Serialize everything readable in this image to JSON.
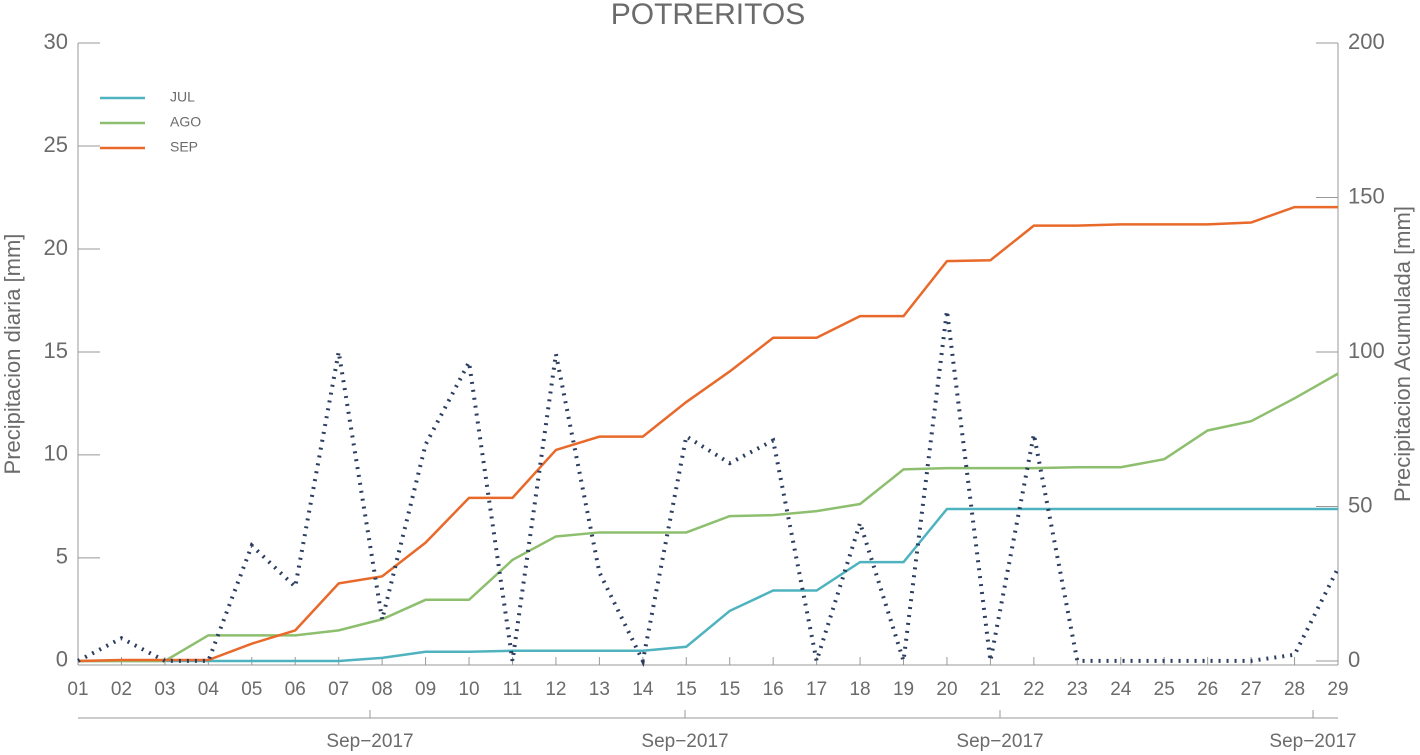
{
  "chart_data": {
    "type": "line",
    "title": "POTRERITOS",
    "ylabel": "Precipitacion diaria [mm]",
    "y2label": "Precipitacion Acumulada [mm]",
    "categories": [
      "01",
      "02",
      "03",
      "04",
      "05",
      "06",
      "07",
      "08",
      "09",
      "10",
      "11",
      "12",
      "13",
      "14",
      "15",
      "15",
      "16",
      "17",
      "18",
      "19",
      "20",
      "21",
      "22",
      "23",
      "24",
      "25",
      "26",
      "27",
      "28",
      "29"
    ],
    "date_labels": [
      "Sep−2017",
      "Sep−2017",
      "Sep−2017",
      "Sep−2017"
    ],
    "ylim": [
      -0.2,
      30
    ],
    "yticks": [
      0,
      5,
      10,
      15,
      20,
      25,
      30
    ],
    "y2lim": [
      -1.3,
      200
    ],
    "y2ticks": [
      0,
      50,
      100,
      150,
      200
    ],
    "legend": "upper left",
    "series": [
      {
        "name": "JUL",
        "color": "#4fb3bf",
        "axis": "y2",
        "values": [
          0,
          0,
          0,
          0,
          0,
          0,
          0,
          1,
          3,
          3,
          3.3,
          3.3,
          3.3,
          3.3,
          4.6,
          16.2,
          22.8,
          22.8,
          32,
          32,
          49.2,
          49.2,
          49.2,
          49.2,
          49.2,
          49.2,
          49.2,
          49.2,
          49.2,
          49.2
        ]
      },
      {
        "name": "AGO",
        "color": "#8dbf6e",
        "axis": "y2",
        "values": [
          0,
          0,
          0,
          8.3,
          8.3,
          8.3,
          9.9,
          13.5,
          19.8,
          19.8,
          32.7,
          40.3,
          41.6,
          41.6,
          41.6,
          46.9,
          47.2,
          48.5,
          50.8,
          62,
          62.4,
          62.4,
          62.4,
          62.7,
          62.7,
          65.3,
          74.6,
          77.6,
          85,
          93
        ]
      },
      {
        "name": "SEP",
        "color": "#e8692a",
        "axis": "y2",
        "values": [
          0,
          0.3,
          0.3,
          0.3,
          5.6,
          9.9,
          25.1,
          27.4,
          38.3,
          52.8,
          52.8,
          68.3,
          72.6,
          72.6,
          83.8,
          93.7,
          104.6,
          104.6,
          111.6,
          111.6,
          129.4,
          129.7,
          140.9,
          140.9,
          141.3,
          141.3,
          141.3,
          141.9,
          146.9,
          146.9
        ]
      },
      {
        "color": "#2c3e60",
        "style": "dotted",
        "values": [
          0,
          1.1,
          0,
          0,
          5.6,
          3.6,
          15,
          2,
          10.5,
          14.5,
          0,
          14.9,
          4.3,
          0,
          10.9,
          9.6,
          10.7,
          0,
          6.7,
          0,
          17,
          0,
          11,
          0,
          0,
          0,
          0,
          0,
          0.3,
          4.5
        ]
      }
    ]
  }
}
